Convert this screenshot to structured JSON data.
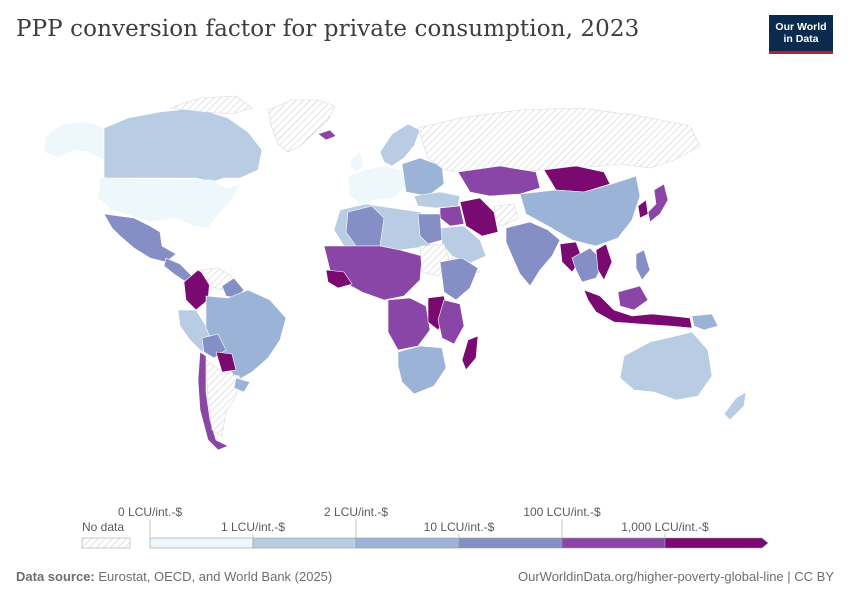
{
  "title": "PPP conversion factor for private consumption, 2023",
  "logo": {
    "line1": "Our World",
    "line2": "in Data"
  },
  "legend": {
    "no_data": "No data",
    "bins": [
      {
        "label": "0 LCU/int.-$",
        "color": "#eef7fb"
      },
      {
        "label": "1 LCU/int.-$",
        "color": "#b8cde3"
      },
      {
        "label": "2 LCU/int.-$",
        "color": "#9ab3d6"
      },
      {
        "label": "10 LCU/int.-$",
        "color": "#858fc6"
      },
      {
        "label": "100 LCU/int.-$",
        "color": "#8a46a6"
      },
      {
        "label": "1,000 LCU/int.-$",
        "color": "#7a0a72"
      }
    ]
  },
  "footer": {
    "source_label": "Data source:",
    "source_text": "Eurostat, OECD, and World Bank (2025)",
    "right_text": "OurWorldinData.org/higher-poverty-global-line | CC BY"
  },
  "colors": {
    "very_low": "#eef7fb",
    "low": "#b8cde3",
    "mid": "#9ab3d6",
    "high": "#858fc6",
    "very_high": "#8a46a6",
    "max": "#7a0a72",
    "border": "#ffffff",
    "no_data_hatch": "#cfcfcf"
  }
}
